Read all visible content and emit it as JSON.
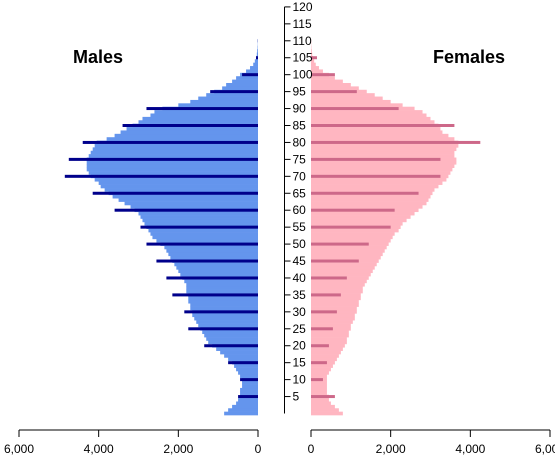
{
  "chart_data": {
    "type": "bar",
    "orientation": "horizontal",
    "grid": false,
    "panels": [
      {
        "name": "Males",
        "title": "Males",
        "side": "left",
        "colors": {
          "bar": "#6495ed",
          "highlight": "#00008b"
        },
        "xticks": [
          6000,
          4000,
          2000,
          0
        ],
        "xtick_labels": [
          "6,000",
          "4,000",
          "2,000",
          "0"
        ],
        "xlim": [
          0,
          6000
        ]
      },
      {
        "name": "Females",
        "title": "Females",
        "side": "right",
        "colors": {
          "bar": "#ffb6c1",
          "highlight": "#cd6889"
        },
        "xticks": [
          0,
          2000,
          4000,
          6000
        ],
        "xtick_labels": [
          "0",
          "2,000",
          "4,000",
          "6,000"
        ],
        "xlim": [
          0,
          6000
        ]
      }
    ],
    "ages": [
      0,
      1,
      2,
      3,
      4,
      5,
      6,
      7,
      8,
      9,
      10,
      11,
      12,
      13,
      14,
      15,
      16,
      17,
      18,
      19,
      20,
      21,
      22,
      23,
      24,
      25,
      26,
      27,
      28,
      29,
      30,
      31,
      32,
      33,
      34,
      35,
      36,
      37,
      38,
      39,
      40,
      41,
      42,
      43,
      44,
      45,
      46,
      47,
      48,
      49,
      50,
      51,
      52,
      53,
      54,
      55,
      56,
      57,
      58,
      59,
      60,
      61,
      62,
      63,
      64,
      65,
      66,
      67,
      68,
      69,
      70,
      71,
      72,
      73,
      74,
      75,
      76,
      77,
      78,
      79,
      80,
      81,
      82,
      83,
      84,
      85,
      86,
      87,
      88,
      89,
      90,
      91,
      92,
      93,
      94,
      95,
      96,
      97,
      98,
      99,
      100,
      101,
      102,
      103,
      104,
      105,
      106,
      107,
      108,
      109,
      110,
      111,
      112,
      113,
      114,
      115,
      116,
      117,
      118,
      119,
      120
    ],
    "ylim": [
      0,
      120
    ],
    "yticks": [
      5,
      10,
      15,
      20,
      25,
      30,
      35,
      40,
      45,
      50,
      55,
      60,
      65,
      70,
      75,
      80,
      85,
      90,
      95,
      100,
      105,
      110,
      115,
      120
    ],
    "highlight_every": 5,
    "males": [
      850,
      750,
      650,
      550,
      500,
      450,
      450,
      450,
      400,
      400,
      400,
      450,
      500,
      550,
      600,
      650,
      750,
      850,
      950,
      1050,
      1150,
      1250,
      1300,
      1350,
      1400,
      1450,
      1500,
      1550,
      1600,
      1650,
      1650,
      1700,
      1700,
      1750,
      1750,
      1750,
      1800,
      1800,
      1800,
      1850,
      1900,
      1950,
      2000,
      2050,
      2100,
      2150,
      2200,
      2250,
      2300,
      2350,
      2450,
      2550,
      2650,
      2700,
      2750,
      2800,
      2850,
      2900,
      2950,
      3000,
      3100,
      3200,
      3350,
      3500,
      3650,
      3750,
      3850,
      3950,
      4000,
      4100,
      4200,
      4250,
      4300,
      4300,
      4300,
      4300,
      4250,
      4200,
      4150,
      4100,
      4050,
      3800,
      3600,
      3450,
      3300,
      3150,
      3000,
      2900,
      2700,
      2600,
      2400,
      2000,
      1700,
      1500,
      1300,
      1100,
      900,
      800,
      650,
      550,
      450,
      300,
      200,
      120,
      80,
      50,
      30,
      20,
      10,
      5,
      5,
      0,
      0,
      0,
      0,
      0,
      0,
      0,
      0,
      0,
      0
    ],
    "males_highlight": [
      null,
      null,
      null,
      null,
      null,
      500,
      null,
      null,
      null,
      null,
      450,
      null,
      null,
      null,
      null,
      750,
      null,
      null,
      null,
      null,
      1350,
      null,
      null,
      null,
      null,
      1750,
      null,
      null,
      null,
      null,
      1850,
      null,
      null,
      null,
      null,
      2150,
      null,
      null,
      null,
      null,
      2300,
      null,
      null,
      null,
      null,
      2550,
      null,
      null,
      null,
      null,
      2800,
      null,
      null,
      null,
      null,
      2950,
      null,
      null,
      null,
      null,
      3600,
      null,
      null,
      null,
      null,
      4150,
      null,
      null,
      null,
      null,
      4850,
      null,
      null,
      null,
      null,
      4750,
      null,
      null,
      null,
      null,
      4400,
      null,
      null,
      null,
      null,
      3400,
      null,
      null,
      null,
      null,
      2800,
      null,
      null,
      null,
      null,
      1200,
      null,
      null,
      null,
      null,
      400,
      null,
      null,
      null,
      null,
      50,
      null,
      null,
      null,
      null,
      5,
      null,
      null,
      null,
      null,
      0,
      null,
      null,
      null,
      null,
      0
    ],
    "females": [
      800,
      700,
      600,
      500,
      450,
      450,
      400,
      400,
      400,
      400,
      400,
      400,
      450,
      500,
      550,
      600,
      650,
      700,
      750,
      800,
      850,
      900,
      900,
      950,
      950,
      1000,
      1000,
      1050,
      1100,
      1100,
      1150,
      1150,
      1200,
      1200,
      1250,
      1250,
      1300,
      1300,
      1350,
      1400,
      1450,
      1500,
      1550,
      1600,
      1650,
      1700,
      1750,
      1800,
      1850,
      1900,
      1950,
      2000,
      2050,
      2100,
      2200,
      2250,
      2300,
      2400,
      2500,
      2600,
      2700,
      2800,
      2900,
      2950,
      3000,
      3050,
      3100,
      3200,
      3300,
      3400,
      3450,
      3500,
      3550,
      3600,
      3650,
      3650,
      3600,
      3600,
      3650,
      3700,
      3700,
      3600,
      3450,
      3300,
      3250,
      3200,
      3100,
      3000,
      2900,
      2800,
      2600,
      2300,
      2000,
      1800,
      1600,
      1400,
      1200,
      1000,
      800,
      600,
      450,
      300,
      200,
      120,
      80,
      50,
      30,
      20,
      10,
      5,
      5,
      0,
      0,
      0,
      0,
      0,
      0,
      0,
      0,
      0,
      0
    ],
    "females_highlight": [
      null,
      null,
      null,
      null,
      null,
      600,
      null,
      null,
      null,
      null,
      300,
      null,
      null,
      null,
      null,
      400,
      null,
      null,
      null,
      null,
      450,
      null,
      null,
      null,
      null,
      550,
      null,
      null,
      null,
      null,
      650,
      null,
      null,
      null,
      null,
      750,
      null,
      null,
      null,
      null,
      900,
      null,
      null,
      null,
      null,
      1200,
      null,
      null,
      null,
      null,
      1450,
      null,
      null,
      null,
      null,
      2000,
      null,
      null,
      null,
      null,
      2100,
      null,
      null,
      null,
      null,
      2700,
      null,
      null,
      null,
      null,
      3250,
      null,
      null,
      null,
      null,
      3250,
      null,
      null,
      null,
      null,
      4250,
      null,
      null,
      null,
      null,
      3600,
      null,
      null,
      null,
      null,
      2200,
      null,
      null,
      null,
      null,
      1150,
      null,
      null,
      null,
      null,
      600,
      null,
      null,
      null,
      null,
      150,
      null,
      null,
      null,
      null,
      0,
      null,
      null,
      null,
      null,
      0
    ]
  }
}
